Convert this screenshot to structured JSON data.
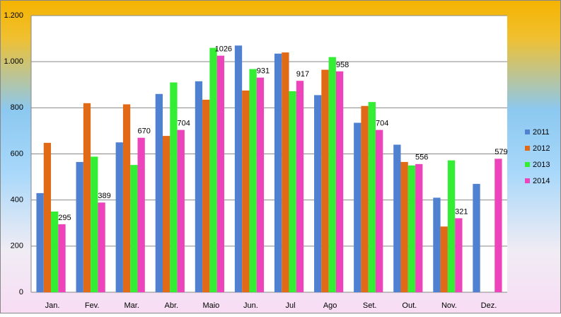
{
  "chart_data": {
    "type": "bar",
    "categories": [
      "Jan.",
      "Fev.",
      "Mar.",
      "Abr.",
      "Maio",
      "Jun.",
      "Jul",
      "Ago",
      "Set.",
      "Out.",
      "Nov.",
      "Dez."
    ],
    "series": [
      {
        "name": "2011",
        "color": "#4f81d0",
        "values": [
          430,
          565,
          650,
          860,
          915,
          1070,
          1035,
          855,
          735,
          640,
          410,
          470
        ]
      },
      {
        "name": "2012",
        "color": "#e06a16",
        "values": [
          648,
          820,
          815,
          678,
          835,
          875,
          1040,
          965,
          808,
          565,
          285,
          null
        ]
      },
      {
        "name": "2013",
        "color": "#33ee33",
        "values": [
          350,
          588,
          552,
          910,
          1060,
          968,
          872,
          1020,
          825,
          550,
          572,
          null
        ]
      },
      {
        "name": "2014",
        "color": "#ee44bb",
        "values": [
          295,
          389,
          670,
          704,
          1026,
          931,
          917,
          958,
          704,
          556,
          321,
          579
        ],
        "data_labels": true
      }
    ],
    "ylim": [
      0,
      1200
    ],
    "yticks": [
      0,
      200,
      400,
      600,
      800,
      {
        "value": 1000,
        "label": "1.000"
      },
      {
        "value": 1200,
        "label": "1.200"
      }
    ],
    "grid": true,
    "legend": "right"
  }
}
